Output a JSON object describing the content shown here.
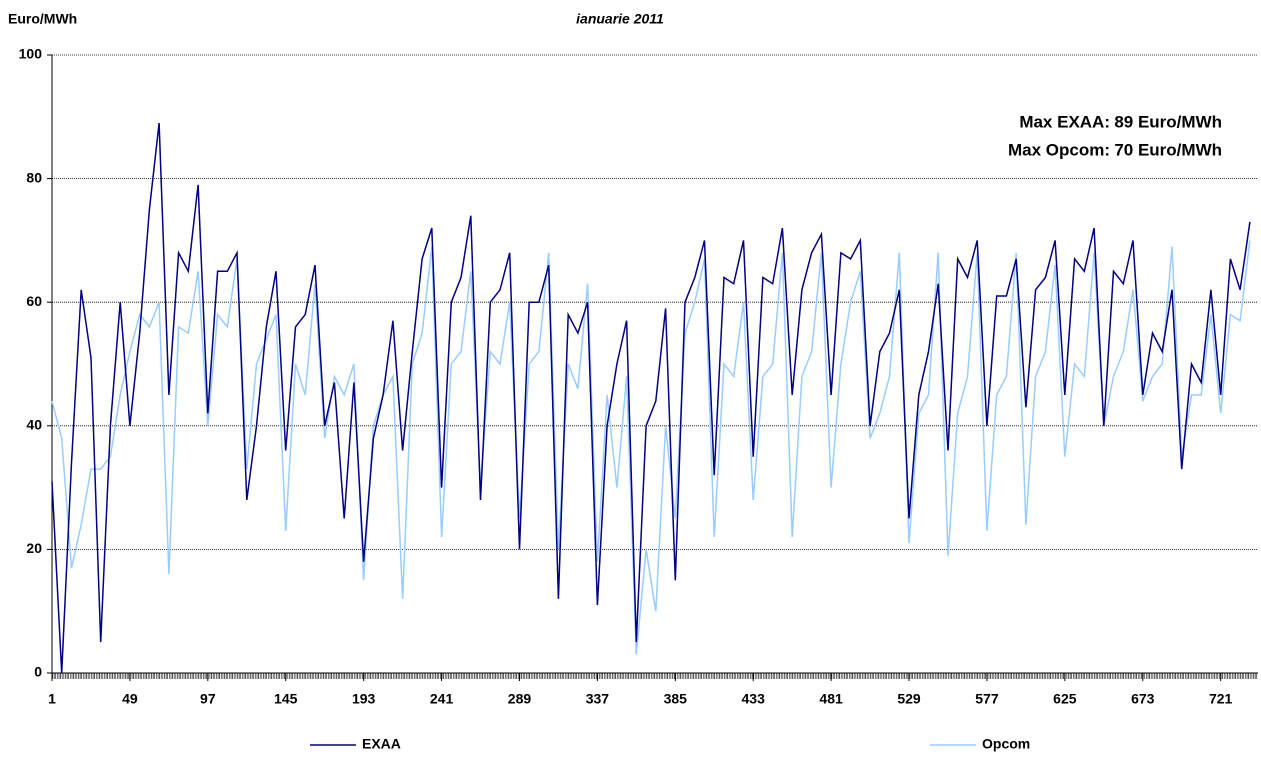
{
  "chart_data": {
    "type": "line",
    "title": "ianuarie 2011",
    "y_label": "Euro/MWh",
    "annotations": [
      {
        "label": "Max EXAA:",
        "text": "89 Euro/MWh",
        "color": "#000080"
      },
      {
        "label": "Max Opcom:",
        "text": "70 Euro/MWh",
        "color": "#99ccff"
      }
    ],
    "x": [
      1,
      7,
      13,
      19,
      25,
      31,
      37,
      43,
      49,
      55,
      61,
      67,
      73,
      79,
      85,
      91,
      97,
      103,
      109,
      115,
      121,
      127,
      133,
      139,
      145,
      151,
      157,
      163,
      169,
      175,
      181,
      187,
      193,
      199,
      205,
      211,
      217,
      223,
      229,
      235,
      241,
      247,
      253,
      259,
      265,
      271,
      277,
      283,
      289,
      295,
      301,
      307,
      313,
      319,
      325,
      331,
      337,
      343,
      349,
      355,
      361,
      367,
      373,
      379,
      385,
      391,
      397,
      403,
      409,
      415,
      421,
      427,
      433,
      439,
      445,
      451,
      457,
      463,
      469,
      475,
      481,
      487,
      493,
      499,
      505,
      511,
      517,
      523,
      529,
      535,
      541,
      547,
      553,
      559,
      565,
      571,
      577,
      583,
      589,
      595,
      601,
      607,
      613,
      619,
      625,
      631,
      637,
      643,
      649,
      655,
      661,
      667,
      673,
      679,
      685,
      691,
      697,
      703,
      709,
      715,
      721,
      727,
      733,
      739
    ],
    "series": [
      {
        "name": "EXAA",
        "color": "#000080",
        "values": [
          31,
          0,
          34,
          62,
          51,
          5,
          40,
          60,
          40,
          55,
          75,
          89,
          45,
          68,
          65,
          79,
          42,
          65,
          65,
          68,
          28,
          40,
          56,
          65,
          36,
          56,
          58,
          66,
          40,
          47,
          25,
          47,
          18,
          38,
          45,
          57,
          36,
          52,
          67,
          72,
          30,
          60,
          64,
          74,
          28,
          60,
          62,
          68,
          20,
          60,
          60,
          66,
          12,
          58,
          55,
          60,
          11,
          40,
          50,
          57,
          5,
          40,
          44,
          59,
          15,
          60,
          64,
          70,
          32,
          64,
          63,
          70,
          35,
          64,
          63,
          72,
          45,
          62,
          68,
          71,
          45,
          68,
          67,
          70,
          40,
          52,
          55,
          62,
          25,
          45,
          52,
          63,
          36,
          67,
          64,
          70,
          40,
          61,
          61,
          67,
          43,
          62,
          64,
          70,
          45,
          67,
          65,
          72,
          40,
          65,
          63,
          70,
          45,
          55,
          52,
          62,
          33,
          50,
          47,
          62,
          45,
          67,
          62,
          73
        ]
      },
      {
        "name": "Opcom",
        "color": "#99ccff",
        "values": [
          44,
          38,
          17,
          24,
          33,
          33,
          35,
          45,
          52,
          58,
          56,
          60,
          16,
          56,
          55,
          65,
          40,
          58,
          56,
          67,
          33,
          50,
          54,
          58,
          23,
          50,
          45,
          63,
          38,
          48,
          45,
          50,
          15,
          40,
          45,
          48,
          12,
          50,
          55,
          69,
          22,
          50,
          52,
          65,
          30,
          52,
          50,
          60,
          25,
          50,
          52,
          68,
          20,
          50,
          46,
          63,
          18,
          45,
          30,
          48,
          3,
          20,
          10,
          40,
          25,
          55,
          60,
          67,
          22,
          50,
          48,
          60,
          28,
          48,
          50,
          68,
          22,
          48,
          52,
          68,
          30,
          50,
          60,
          65,
          38,
          42,
          48,
          68,
          21,
          42,
          45,
          68,
          19,
          42,
          48,
          68,
          23,
          45,
          48,
          68,
          24,
          48,
          52,
          66,
          35,
          50,
          48,
          68,
          40,
          48,
          52,
          62,
          44,
          48,
          50,
          69,
          35,
          45,
          45,
          58,
          42,
          58,
          57,
          70
        ]
      }
    ],
    "xlim": [
      1,
      744
    ],
    "xticks": [
      1,
      49,
      97,
      145,
      193,
      241,
      289,
      337,
      385,
      433,
      481,
      529,
      577,
      625,
      673,
      721
    ],
    "ylim": [
      0,
      100
    ],
    "yticks": [
      0,
      20,
      40,
      60,
      80,
      100
    ],
    "grid": true
  }
}
